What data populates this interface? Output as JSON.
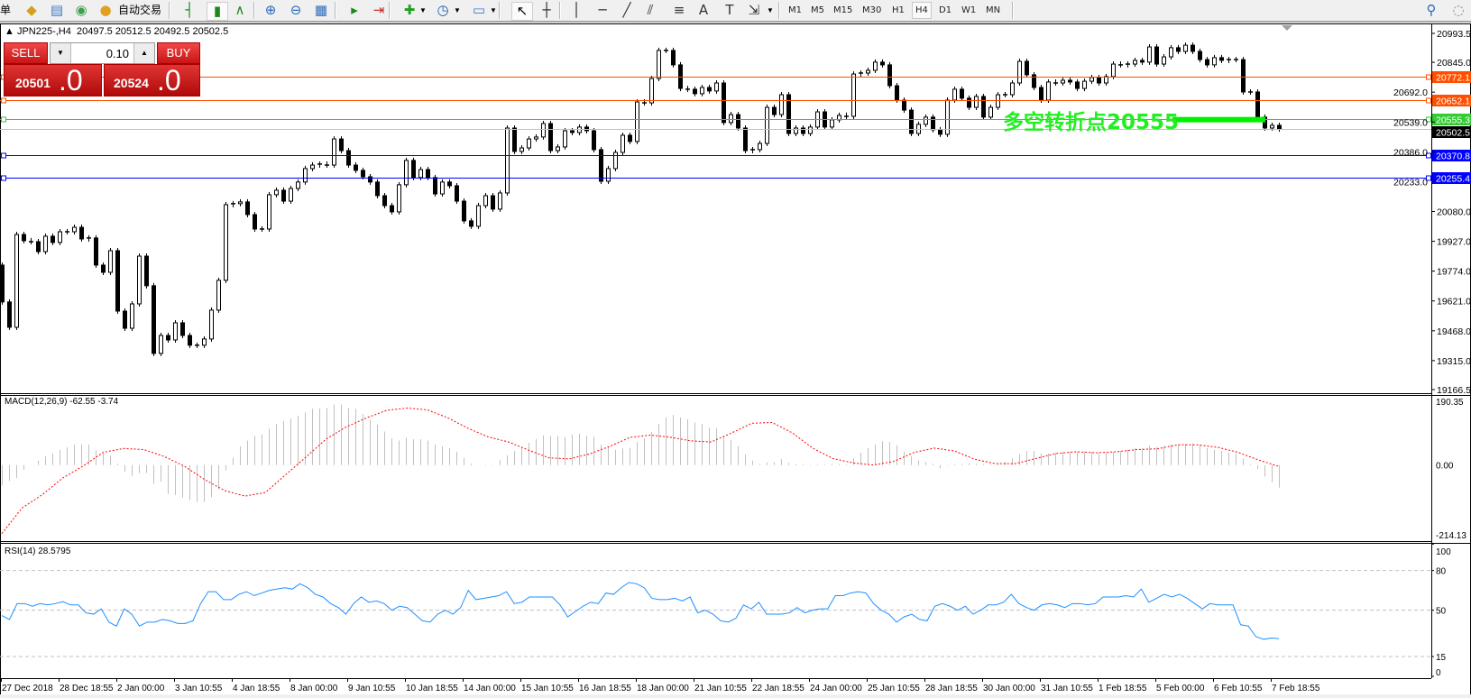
{
  "toolbar": {
    "first_label": "单",
    "auto_trading_label": "自动交易",
    "icons": [
      {
        "name": "market-watch-icon",
        "glyph": "◆",
        "color": "#d4a017"
      },
      {
        "name": "data-window-icon",
        "glyph": "▤",
        "color": "#3a78c8"
      },
      {
        "name": "signals-icon",
        "glyph": "◉",
        "color": "#3aa04a"
      },
      {
        "name": "auto-trading-icon",
        "glyph": "●",
        "color": "#e0a020"
      },
      {
        "name": "bar-chart-icon",
        "glyph": "┤",
        "color": "#1a8a1a"
      },
      {
        "name": "candlestick-icon",
        "glyph": "▮",
        "color": "#1a8a1a"
      },
      {
        "name": "line-chart-icon",
        "glyph": "∧",
        "color": "#1a8a1a"
      },
      {
        "name": "zoom-in-icon",
        "glyph": "⊕",
        "color": "#2a6ab8"
      },
      {
        "name": "zoom-out-icon",
        "glyph": "⊖",
        "color": "#2a6ab8"
      },
      {
        "name": "tile-windows-icon",
        "glyph": "▦",
        "color": "#2a6ab8"
      },
      {
        "name": "auto-scroll-icon",
        "glyph": "▸",
        "color": "#1a8a1a"
      },
      {
        "name": "chart-shift-icon",
        "glyph": "⇥",
        "color": "#c03030"
      },
      {
        "name": "indicators-icon",
        "glyph": "✚",
        "color": "#20a020"
      },
      {
        "name": "periods-clock-icon",
        "glyph": "◷",
        "color": "#1a5ab0"
      },
      {
        "name": "templates-icon",
        "glyph": "▭",
        "color": "#3a78c8"
      },
      {
        "name": "cursor-icon",
        "glyph": "↖",
        "color": "#000000"
      },
      {
        "name": "crosshair-icon",
        "glyph": "┼",
        "color": "#333333"
      },
      {
        "name": "vertical-line-icon",
        "glyph": "│",
        "color": "#333333"
      },
      {
        "name": "horizontal-line-icon",
        "glyph": "─",
        "color": "#333333"
      },
      {
        "name": "trendline-icon",
        "glyph": "╱",
        "color": "#333333"
      },
      {
        "name": "equidistant-channel-icon",
        "glyph": "⫽",
        "color": "#333333"
      },
      {
        "name": "fibonacci-icon",
        "glyph": "≡",
        "color": "#333333"
      },
      {
        "name": "text-icon",
        "glyph": "A",
        "color": "#333333"
      },
      {
        "name": "text-label-icon",
        "glyph": "T",
        "color": "#333333"
      },
      {
        "name": "arrows-icon",
        "glyph": "⇲",
        "color": "#333333"
      }
    ],
    "timeframes": [
      "M1",
      "M5",
      "M15",
      "M30",
      "H1",
      "H4",
      "D1",
      "W1",
      "MN"
    ],
    "active_timeframe": "H4",
    "right_icons": [
      {
        "name": "search-icon",
        "glyph": "⚲",
        "color": "#2a6ab8"
      },
      {
        "name": "chat-icon",
        "glyph": "◌",
        "color": "#888888"
      }
    ]
  },
  "chart": {
    "header": {
      "arrow": "▲",
      "symbol": "JPN225-,H4",
      "ohlc": "20497.5 20512.5 20492.5 20502.5"
    },
    "trade_panel": {
      "sell_label": "SELL",
      "buy_label": "BUY",
      "lot": "0.10",
      "lot_down": "▼",
      "lot_up": "▲",
      "sell_price_main": "20501",
      "sell_price_frac": ".0",
      "buy_price_main": "20524",
      "buy_price_frac": ".0"
    },
    "annotation": {
      "text": "多空转折点20555",
      "color": "#22ee22",
      "price": 20551
    },
    "hlines": [
      {
        "price": 20772.1,
        "label": "20772.1",
        "color": "#ff4f00"
      },
      {
        "price": 20652.1,
        "label": "20652.1",
        "color": "#ff4f00"
      },
      {
        "price": 20555.3,
        "label": "20555.3",
        "color": "#33cc33"
      },
      {
        "price": 20502.5,
        "label": "20502.5",
        "color": "#c0c0c0",
        "label_bg": "#000000"
      },
      {
        "price": 20370.8,
        "label": "20370.8",
        "color": "#0000ff"
      },
      {
        "price": 20255.4,
        "label": "20255.4",
        "color": "#0000ff"
      }
    ],
    "price_axis_ticks": [
      "20993.5",
      "20845.0",
      "20692.0",
      "20539.0",
      "20386.0",
      "20233.0",
      "20080.0",
      "19927.0",
      "19774.0",
      "19621.0",
      "19468.0",
      "19315.0",
      "19166.5"
    ],
    "time_axis_labels": [
      "27 Dec 2018",
      "28 Dec 18:55",
      "2 Jan 00:00",
      "3 Jan 10:55",
      "4 Jan 18:55",
      "8 Jan 00:00",
      "9 Jan 10:55",
      "10 Jan 18:55",
      "14 Jan 00:00",
      "15 Jan 10:55",
      "16 Jan 18:55",
      "18 Jan 00:00",
      "21 Jan 10:55",
      "22 Jan 18:55",
      "24 Jan 00:00",
      "25 Jan 10:55",
      "28 Jan 18:55",
      "30 Jan 00:00",
      "31 Jan 10:55",
      "1 Feb 18:55",
      "5 Feb 00:00",
      "6 Feb 10:55",
      "7 Feb 18:55"
    ],
    "macd_title": "MACD(12,26,9) -62.55 -3.74",
    "macd_axis": [
      "190.35",
      "0.00",
      "-214.13"
    ],
    "rsi_title": "RSI(14) 28.5795",
    "rsi_axis": [
      "100",
      "80",
      "50",
      "15",
      "0"
    ]
  },
  "chart_data": {
    "type": "candlestick",
    "symbol": "JPN225-",
    "timeframe": "H4",
    "price_range": [
      19166.5,
      20993.5
    ],
    "first_open": 19805,
    "closes": [
      19616,
      19486,
      19962,
      19930,
      19925,
      19874,
      19953,
      19921,
      19976,
      19976,
      19999,
      19939,
      19944,
      19805,
      19768,
      19879,
      19569,
      19481,
      19606,
      19851,
      19699,
      19352,
      19444,
      19421,
      19509,
      19444,
      19394,
      19394,
      19426,
      19574,
      19727,
      20115,
      20120,
      20129,
      20064,
      19990,
      19990,
      20166,
      20189,
      20133,
      20198,
      20231,
      20300,
      20318,
      20323,
      20318,
      20452,
      20392,
      20318,
      20291,
      20258,
      20231,
      20161,
      20110,
      20078,
      20217,
      20342,
      20254,
      20295,
      20254,
      20170,
      20231,
      20212,
      20133,
      20032,
      20004,
      20110,
      20161,
      20092,
      20175,
      20508,
      20388,
      20406,
      20452,
      20462,
      20531,
      20392,
      20411,
      20494,
      20485,
      20513,
      20494,
      20397,
      20235,
      20300,
      20383,
      20471,
      20439,
      20642,
      20637,
      20762,
      20906,
      20906,
      20832,
      20711,
      20707,
      20684,
      20716,
      20698,
      20739,
      20536,
      20577,
      20508,
      20392,
      20397,
      20429,
      20614,
      20577,
      20679,
      20480,
      20508,
      20480,
      20513,
      20591,
      20513,
      20550,
      20573,
      20568,
      20785,
      20790,
      20804,
      20846,
      20832,
      20725,
      20651,
      20600,
      20480,
      20527,
      20564,
      20499,
      20476,
      20651,
      20707,
      20661,
      20614,
      20670,
      20564,
      20614,
      20679,
      20679,
      20739,
      20850,
      20781,
      20716,
      20651,
      20744,
      20739,
      20753,
      20744,
      20711,
      20748,
      20767,
      20739,
      20772,
      20836,
      20832,
      20836,
      20855,
      20846,
      20924,
      20836,
      20873,
      20920,
      20901,
      20933,
      20901,
      20859,
      20832,
      20869,
      20855,
      20859,
      20859,
      20693,
      20693,
      20564,
      20508,
      20522,
      20502.5
    ],
    "macd": {
      "range": [
        -214.13,
        190.35
      ],
      "histogram_color": "#c0c0c0",
      "signal_color": "#ff0000",
      "histogram": [
        -57,
        -44,
        -36,
        -13,
        0,
        12,
        24,
        32,
        42,
        49,
        57,
        57,
        57,
        41,
        32,
        26,
        4,
        -19,
        -30,
        -22,
        -22,
        -52,
        -46,
        -80,
        -83,
        -90,
        -97,
        -102,
        -102,
        -89,
        -67,
        -15,
        20,
        52,
        68,
        81,
        85,
        101,
        114,
        122,
        129,
        137,
        146,
        156,
        157,
        158,
        168,
        168,
        158,
        156,
        141,
        126,
        112,
        93,
        74,
        68,
        76,
        71,
        71,
        68,
        57,
        52,
        47,
        37,
        20,
        4,
        0,
        1,
        1,
        14,
        27,
        39,
        49,
        62,
        72,
        82,
        81,
        81,
        78,
        85,
        87,
        81,
        78,
        57,
        52,
        42,
        46,
        47,
        64,
        74,
        92,
        114,
        132,
        139,
        132,
        127,
        118,
        114,
        104,
        102,
        82,
        70,
        52,
        29,
        12,
        3,
        7,
        7,
        16,
        6,
        3,
        2,
        1,
        2,
        2,
        3,
        3,
        2,
        19,
        34,
        47,
        57,
        66,
        64,
        55,
        37,
        24,
        12,
        8,
        4,
        -9,
        -2,
        2,
        3,
        5,
        3,
        3,
        3,
        5,
        9,
        19,
        31,
        39,
        39,
        32,
        32,
        34,
        37,
        37,
        37,
        37,
        37,
        34,
        34,
        37,
        39,
        43,
        47,
        46,
        54,
        50,
        53,
        56,
        57,
        59,
        60,
        56,
        47,
        42,
        39,
        35,
        31,
        18,
        2,
        -11,
        -32,
        -48,
        -62.55
      ],
      "signal": [
        -190,
        -119,
        -82,
        -36,
        -3,
        35,
        46,
        43,
        24,
        -3,
        -40,
        -71,
        -86,
        -76,
        -27,
        22,
        72,
        106,
        131,
        152,
        158,
        153,
        131,
        102,
        78,
        64,
        41,
        20,
        17,
        31,
        52,
        77,
        83,
        77,
        67,
        64,
        89,
        116,
        118,
        89,
        47,
        18,
        6,
        0,
        10,
        35,
        47,
        39,
        16,
        4,
        4,
        18,
        32,
        37,
        34,
        37,
        43,
        45,
        56,
        56,
        49,
        35,
        14,
        -3.74
      ]
    },
    "rsi": {
      "range": [
        0,
        100
      ],
      "levels": [
        80,
        50,
        15
      ],
      "color": "#1e90ff",
      "values": [
        46,
        43,
        55,
        55,
        53,
        55,
        54,
        55,
        56.5,
        54,
        54,
        48,
        47,
        51,
        41,
        38,
        51,
        47,
        38,
        41,
        41,
        43,
        42,
        40,
        40,
        42,
        55,
        64,
        64,
        58,
        58,
        62,
        64,
        61,
        63,
        65,
        66,
        67,
        66,
        70,
        67,
        62,
        60,
        55,
        52,
        47,
        55,
        60,
        56,
        57,
        55,
        50,
        53,
        52,
        47,
        42,
        41,
        47,
        50,
        47,
        52,
        65,
        58,
        59,
        60,
        61,
        64,
        55,
        56,
        60,
        60,
        60,
        60,
        54,
        45,
        49,
        53,
        56,
        55,
        63,
        62,
        67,
        71,
        70,
        67,
        59,
        58,
        58,
        59,
        57,
        60,
        48,
        50,
        47,
        42,
        41,
        44,
        54,
        51,
        56,
        47,
        47,
        47,
        48,
        52,
        48,
        50,
        51,
        51,
        61,
        61,
        63,
        64,
        63,
        55,
        50,
        47,
        41,
        45,
        47,
        43,
        42,
        53,
        55,
        53,
        50,
        53,
        47,
        50,
        54,
        54,
        56,
        62,
        55,
        52,
        50,
        54,
        55,
        54,
        52,
        55,
        55,
        54,
        55,
        60,
        60,
        60,
        61,
        60,
        66,
        56,
        59,
        62,
        60,
        62,
        59,
        55,
        51,
        55,
        54,
        54,
        54,
        39,
        38,
        30,
        28,
        29,
        28.5795
      ]
    }
  }
}
